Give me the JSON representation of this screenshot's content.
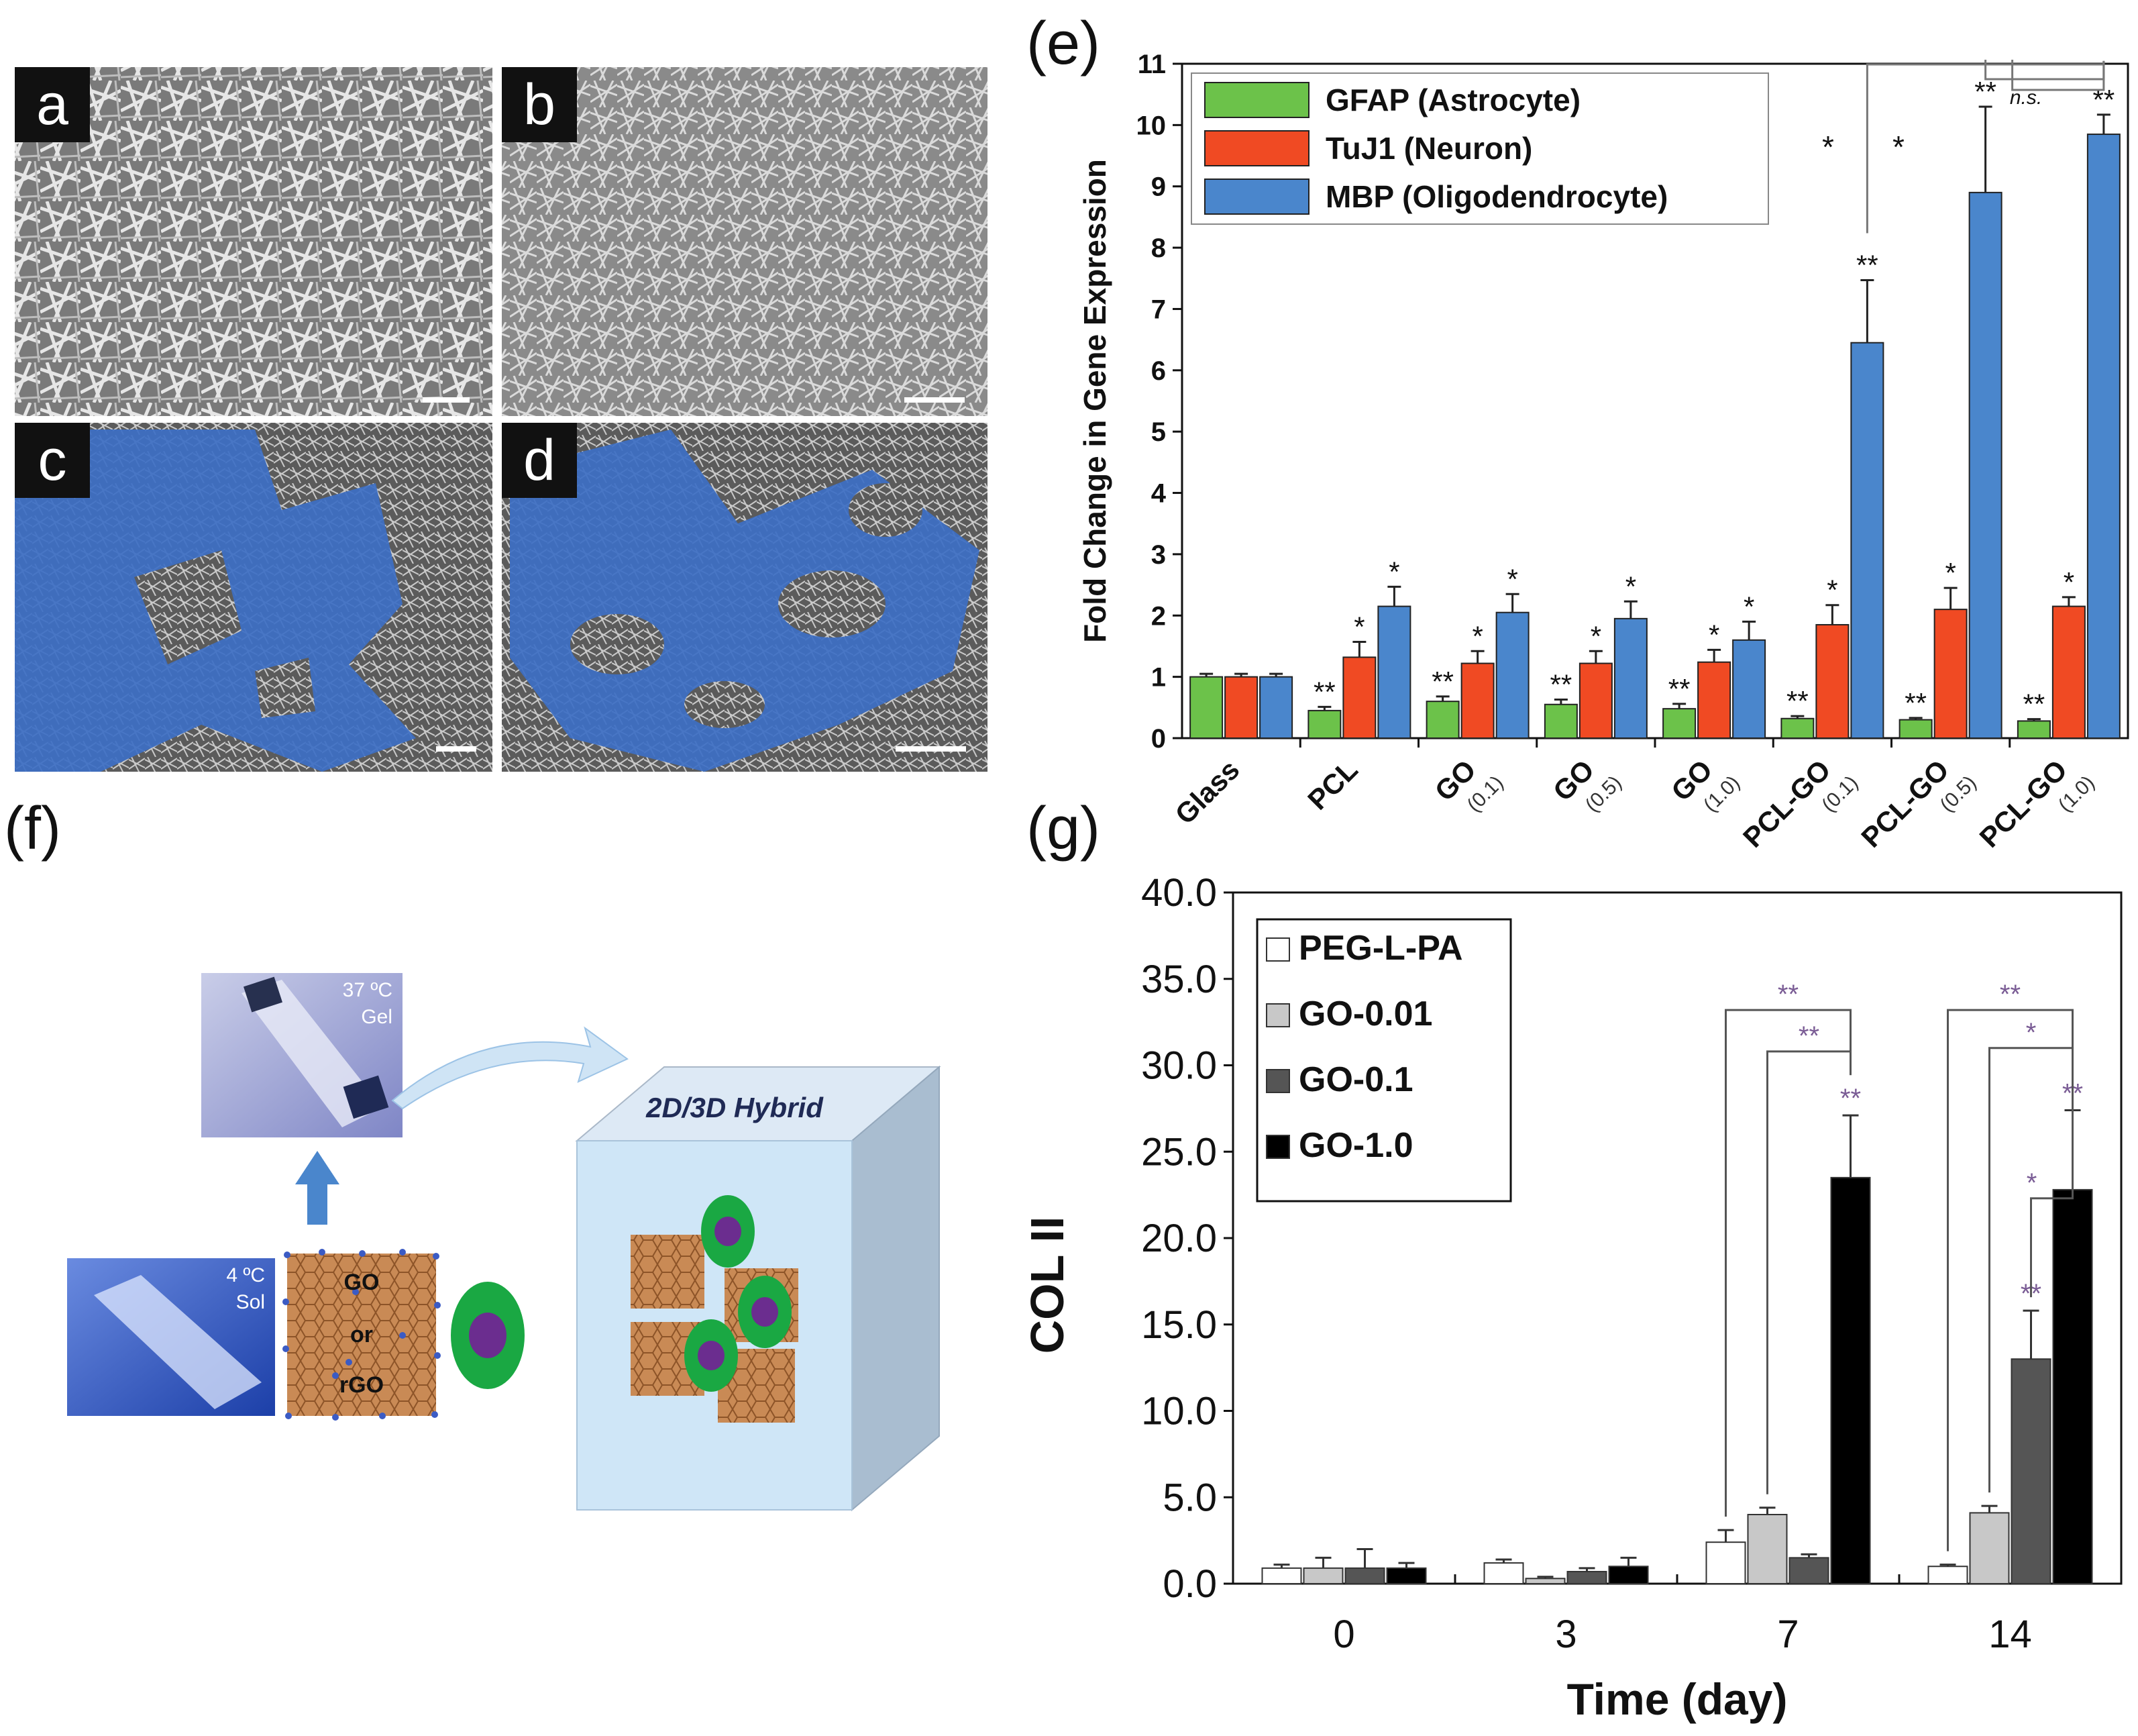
{
  "panels": {
    "a": "a",
    "b": "b",
    "c": "c",
    "d": "d",
    "e": "(e)",
    "f": "(f)",
    "g": "(g)"
  },
  "colors": {
    "gfap": "#6cc24a",
    "tuj1": "#f04a23",
    "mbp": "#4a86cc",
    "sem_gray": "#8f8f8f",
    "cell_blue": "#3d6fc4",
    "grid_line": "#bbbbbb"
  },
  "diagram_f": {
    "gel_label_temp": "37 ºC",
    "gel_label_state": "Gel",
    "sol_label_temp": "4 ºC",
    "sol_label_state": "Sol",
    "sheet_text": [
      "GO",
      "or",
      "rGO"
    ],
    "cube_title": "2D/3D Hybrid",
    "icons": [
      "up-arrow-icon",
      "curved-arrow-icon",
      "cell-icon"
    ]
  },
  "chart_data": [
    {
      "panel": "e",
      "type": "bar",
      "ylabel": "Fold Change in Gene Expression",
      "ylim": [
        0,
        11
      ],
      "yticks": [
        0,
        1,
        2,
        3,
        4,
        5,
        6,
        7,
        8,
        9,
        10,
        11
      ],
      "categories": [
        "Glass",
        "PCL",
        "GO",
        "GO",
        "GO",
        "PCL-GO",
        "PCL-GO",
        "PCL-GO"
      ],
      "category_sublabels": [
        "",
        "",
        "(0.1)",
        "(0.5)",
        "(1.0)",
        "(0.1)",
        "(0.5)",
        "(1.0)"
      ],
      "series": [
        {
          "name": "GFAP (Astrocyte)",
          "color": "#6cc24a",
          "values": [
            1.0,
            0.45,
            0.6,
            0.55,
            0.48,
            0.32,
            0.3,
            0.28
          ],
          "errors": [
            0.05,
            0.06,
            0.08,
            0.08,
            0.08,
            0.04,
            0.03,
            0.03
          ],
          "marks": [
            "",
            "**",
            "**",
            "**",
            "**",
            "**",
            "**",
            "**"
          ]
        },
        {
          "name": "TuJ1 (Neuron)",
          "color": "#f04a23",
          "values": [
            1.0,
            1.32,
            1.22,
            1.22,
            1.24,
            1.85,
            2.1,
            2.15
          ],
          "errors": [
            0.05,
            0.25,
            0.2,
            0.2,
            0.2,
            0.32,
            0.35,
            0.15
          ],
          "marks": [
            "",
            "*",
            "*",
            "*",
            "*",
            "*",
            "*",
            "*"
          ]
        },
        {
          "name": "MBP (Oligodendrocyte)",
          "color": "#4a86cc",
          "values": [
            1.0,
            2.15,
            2.05,
            1.95,
            1.6,
            6.45,
            8.9,
            9.85
          ],
          "errors": [
            0.05,
            0.32,
            0.3,
            0.28,
            0.3,
            1.02,
            1.4,
            0.32
          ],
          "marks": [
            "",
            "*",
            "*",
            "*",
            "*",
            "**",
            "**",
            "**"
          ]
        }
      ],
      "comparisons": [
        {
          "between": [
            5,
            7
          ],
          "mark": "*"
        },
        {
          "between": [
            6,
            7
          ],
          "mark": "*"
        },
        {
          "between": [
            6,
            7
          ],
          "mark": "n.s."
        }
      ],
      "legend_position": "top-left"
    },
    {
      "panel": "g",
      "type": "bar",
      "xlabel": "Time (day)",
      "ylabel": "COL II",
      "ylim": [
        0,
        40
      ],
      "yticks": [
        "0.0",
        "5.0",
        "10.0",
        "15.0",
        "20.0",
        "25.0",
        "30.0",
        "35.0",
        "40.0"
      ],
      "categories": [
        "0",
        "3",
        "7",
        "14"
      ],
      "series": [
        {
          "name": "PEG-L-PA",
          "color": "#ffffff",
          "values": [
            0.9,
            1.2,
            2.4,
            1.0
          ],
          "errors": [
            0.2,
            0.2,
            0.7,
            0.1
          ],
          "marks": [
            "",
            "",
            "",
            ""
          ]
        },
        {
          "name": "GO-0.01",
          "color": "#c8c8c8",
          "values": [
            0.9,
            0.3,
            4.0,
            4.1
          ],
          "errors": [
            0.6,
            0.1,
            0.4,
            0.4
          ],
          "marks": [
            "",
            "",
            "",
            ""
          ]
        },
        {
          "name": "GO-0.1",
          "color": "#555555",
          "values": [
            0.9,
            0.7,
            1.5,
            13.0
          ],
          "errors": [
            1.1,
            0.2,
            0.2,
            2.8
          ],
          "marks": [
            "",
            "",
            "",
            "**"
          ]
        },
        {
          "name": "GO-1.0",
          "color": "#000000",
          "values": [
            0.9,
            1.0,
            23.5,
            22.8
          ],
          "errors": [
            0.3,
            0.5,
            3.6,
            4.6
          ],
          "marks": [
            "",
            "",
            "**",
            "**"
          ]
        }
      ],
      "comparisons": [
        {
          "category": 2,
          "between": [
            0,
            3
          ],
          "mark": "**"
        },
        {
          "category": 2,
          "between": [
            1,
            3
          ],
          "mark": "**"
        },
        {
          "category": 3,
          "between": [
            0,
            3
          ],
          "mark": "**"
        },
        {
          "category": 3,
          "between": [
            1,
            3
          ],
          "mark": "*"
        },
        {
          "category": 3,
          "between": [
            2,
            3
          ],
          "mark": "*"
        }
      ],
      "legend_position": "top-left"
    }
  ]
}
